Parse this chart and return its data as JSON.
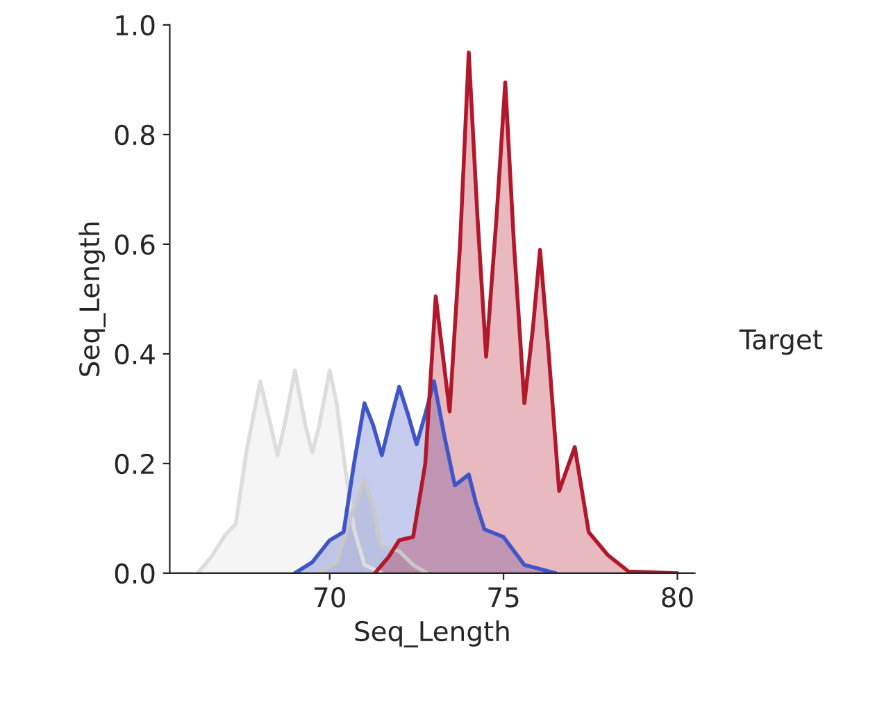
{
  "chart_data": {
    "type": "area",
    "xlabel": "Seq_Length",
    "ylabel": "Seq_Length",
    "legend_title": "Target",
    "grid": false,
    "xlim": [
      65.4,
      80.5
    ],
    "ylim": [
      0,
      1.0
    ],
    "xticks": [
      70,
      75,
      80
    ],
    "yticks": [
      {
        "value": 0,
        "label": "0.0"
      },
      {
        "value": 0.2,
        "label": "0.2"
      },
      {
        "value": 0.4,
        "label": "0.4"
      },
      {
        "value": 0.6,
        "label": "0.6"
      },
      {
        "value": 0.8,
        "label": "0.8"
      },
      {
        "value": 1.0,
        "label": "1.0"
      }
    ],
    "series": [
      {
        "color": "#dddddd",
        "x": [
          66.2,
          66.6,
          67.0,
          67.3,
          67.6,
          68.0,
          68.3,
          68.5,
          68.7,
          69.0,
          69.3,
          69.5,
          69.7,
          70.0,
          70.2,
          70.45,
          70.7,
          71.0,
          71.5
        ],
        "values": [
          0.0,
          0.03,
          0.07,
          0.09,
          0.22,
          0.35,
          0.27,
          0.215,
          0.27,
          0.37,
          0.27,
          0.22,
          0.27,
          0.37,
          0.31,
          0.19,
          0.08,
          0.015,
          0.0
        ]
      },
      {
        "color": "#c8c8c8",
        "x": [
          69.7,
          70.2,
          70.6,
          71.0,
          71.25,
          71.45,
          72.0,
          72.4,
          72.8
        ],
        "values": [
          0.0,
          0.02,
          0.1,
          0.17,
          0.12,
          0.05,
          0.04,
          0.015,
          0.0
        ]
      },
      {
        "color": "#4055c8",
        "x": [
          69.0,
          69.5,
          70.0,
          70.4,
          70.7,
          71.0,
          71.25,
          71.5,
          71.75,
          72.0,
          72.25,
          72.5,
          72.75,
          73.0,
          73.3,
          73.6,
          74.0,
          74.2,
          74.45,
          75.0,
          75.6,
          76.5
        ],
        "values": [
          0.0,
          0.02,
          0.06,
          0.075,
          0.2,
          0.31,
          0.27,
          0.215,
          0.28,
          0.34,
          0.29,
          0.235,
          0.29,
          0.35,
          0.25,
          0.16,
          0.18,
          0.13,
          0.08,
          0.066,
          0.015,
          0.0
        ]
      },
      {
        "color": "#b2182b",
        "x": [
          71.3,
          71.7,
          72.0,
          72.4,
          72.75,
          73.05,
          73.25,
          73.45,
          73.75,
          74.0,
          74.25,
          74.5,
          74.8,
          75.05,
          75.3,
          75.6,
          75.85,
          76.05,
          76.3,
          76.6,
          77.05,
          77.45,
          78.0,
          78.6,
          80.0
        ],
        "values": [
          0.0,
          0.03,
          0.06,
          0.066,
          0.2,
          0.505,
          0.4,
          0.295,
          0.6,
          0.95,
          0.65,
          0.395,
          0.65,
          0.895,
          0.6,
          0.31,
          0.45,
          0.59,
          0.4,
          0.15,
          0.23,
          0.075,
          0.033,
          0.003,
          0.0
        ]
      }
    ]
  }
}
